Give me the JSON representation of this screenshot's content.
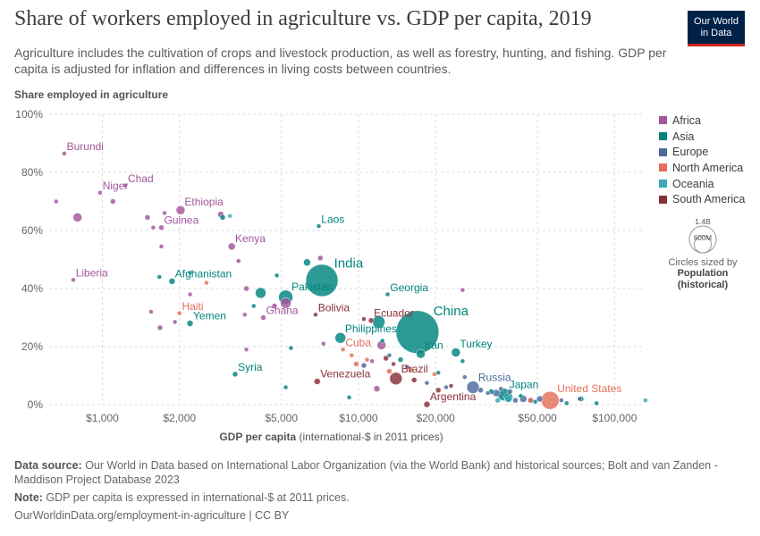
{
  "title": "Share of workers employed in agriculture vs. GDP per capita, 2019",
  "subtitle": "Agriculture includes the cultivation of crops and livestock production, as well as forestry, hunting, and fishing. GDP per capita is adjusted for inflation and differences in living costs between countries.",
  "logo": {
    "line1": "Our World",
    "line2": "in Data"
  },
  "size_legend": {
    "big": "1.4B",
    "small": "600M",
    "caption": "Circles sized by",
    "pop_line1": "Population",
    "pop_line2": "(historical)"
  },
  "footer": {
    "source_label": "Data source:",
    "source_text": " Our World in Data based on International Labor Organization (via the World Bank) and historical sources; Bolt and van Zanden - Maddison Project Database 2023",
    "note_label": "Note:",
    "note_text": " GDP per capita is expressed in international-$ at 2011 prices.",
    "url": "OurWorldinData.org/employment-in-agriculture | CC BY"
  },
  "colors": {
    "Africa": "#a2559c",
    "Asia": "#00847e",
    "Europe": "#4c6a9c",
    "North America": "#e56e5a",
    "Oceania": "#38aaba",
    "South America": "#883039"
  },
  "chart_data": {
    "type": "scatter",
    "title": "Share of workers employed in agriculture vs. GDP per capita, 2019",
    "ylabel": "Share employed in agriculture",
    "xlabel": "GDP per capita",
    "xlabel_suffix": " (international-$ in 2011 prices)",
    "x_scale": "log",
    "xlim": [
      620,
      130000
    ],
    "ylim": [
      0,
      100
    ],
    "x_ticks": [
      1000,
      2000,
      5000,
      10000,
      20000,
      50000,
      100000
    ],
    "x_tick_labels": [
      "$1,000",
      "$2,000",
      "$5,000",
      "$10,000",
      "$20,000",
      "$50,000",
      "$100,000"
    ],
    "y_ticks": [
      0,
      20,
      40,
      60,
      80,
      100
    ],
    "y_tick_labels": [
      "0%",
      "20%",
      "40%",
      "60%",
      "80%",
      "100%"
    ],
    "grid": true,
    "legend_position": "right",
    "series": [
      {
        "name": "Africa"
      },
      {
        "name": "Asia"
      },
      {
        "name": "Europe"
      },
      {
        "name": "North America"
      },
      {
        "name": "Oceania"
      },
      {
        "name": "South America"
      }
    ],
    "points": [
      {
        "x": 710,
        "y": 86.5,
        "r": 2.5,
        "continent": "Africa",
        "label": "Burundi"
      },
      {
        "x": 1230,
        "y": 75.5,
        "r": 2.5,
        "continent": "Africa",
        "label": "Chad"
      },
      {
        "x": 980,
        "y": 73,
        "r": 2.5,
        "continent": "Africa",
        "label": "Niger"
      },
      {
        "x": 2020,
        "y": 67,
        "r": 5,
        "continent": "Africa",
        "label": "Ethiopia"
      },
      {
        "x": 1700,
        "y": 61,
        "r": 3,
        "continent": "Africa",
        "label": "Guinea"
      },
      {
        "x": 3200,
        "y": 54.5,
        "r": 4,
        "continent": "Africa",
        "label": "Kenya"
      },
      {
        "x": 770,
        "y": 43,
        "r": 2.5,
        "continent": "Africa",
        "label": "Liberia"
      },
      {
        "x": 4250,
        "y": 30,
        "r": 3,
        "continent": "Africa",
        "label": "Ghana"
      },
      {
        "x": 1870,
        "y": 42.5,
        "r": 3.5,
        "continent": "Asia",
        "label": "Afghanistan"
      },
      {
        "x": 7000,
        "y": 61.5,
        "r": 2.5,
        "continent": "Asia",
        "label": "Laos"
      },
      {
        "x": 7200,
        "y": 42.8,
        "r": 18,
        "continent": "Asia",
        "label": "India"
      },
      {
        "x": 5200,
        "y": 37,
        "r": 8,
        "continent": "Asia",
        "label": "Pakistan"
      },
      {
        "x": 2200,
        "y": 28,
        "r": 3.5,
        "continent": "Asia",
        "label": "Yemen"
      },
      {
        "x": 3300,
        "y": 10.5,
        "r": 3,
        "continent": "Asia",
        "label": "Syria"
      },
      {
        "x": 13000,
        "y": 38,
        "r": 2.5,
        "continent": "Asia",
        "label": "Georgia"
      },
      {
        "x": 17000,
        "y": 25,
        "r": 24,
        "continent": "Asia",
        "label": "China"
      },
      {
        "x": 8500,
        "y": 23,
        "r": 6,
        "continent": "Asia",
        "label": "Philippines"
      },
      {
        "x": 17500,
        "y": 17.5,
        "r": 5,
        "continent": "Asia",
        "label": "Iran"
      },
      {
        "x": 24000,
        "y": 18,
        "r": 5,
        "continent": "Asia",
        "label": "Turkey"
      },
      {
        "x": 37000,
        "y": 3.5,
        "r": 7,
        "continent": "Asia",
        "label": "Japan"
      },
      {
        "x": 28000,
        "y": 6,
        "r": 7,
        "continent": "Europe",
        "label": "Russia"
      },
      {
        "x": 2000,
        "y": 31.5,
        "r": 2.5,
        "continent": "North America",
        "label": "Haiti"
      },
      {
        "x": 8700,
        "y": 19,
        "r": 2.5,
        "continent": "North America",
        "label": "Cuba"
      },
      {
        "x": 56000,
        "y": 1.5,
        "r": 10,
        "continent": "North America",
        "label": "United States"
      },
      {
        "x": 6800,
        "y": 31,
        "r": 2.5,
        "continent": "South America",
        "label": "Bolivia"
      },
      {
        "x": 11200,
        "y": 29,
        "r": 3,
        "continent": "South America",
        "label": "Ecuador"
      },
      {
        "x": 6900,
        "y": 8,
        "r": 3.5,
        "continent": "South America",
        "label": "Venezuela"
      },
      {
        "x": 14000,
        "y": 9,
        "r": 7,
        "continent": "South America",
        "label": "Brazil"
      },
      {
        "x": 18500,
        "y": 0.1,
        "r": 3.5,
        "continent": "South America",
        "label": "Argentina"
      },
      {
        "x": 800,
        "y": 64.5,
        "r": 5,
        "continent": "Africa"
      },
      {
        "x": 1100,
        "y": 70,
        "r": 3,
        "continent": "Africa"
      },
      {
        "x": 660,
        "y": 70,
        "r": 2.5,
        "continent": "Africa"
      },
      {
        "x": 1500,
        "y": 64.5,
        "r": 3,
        "continent": "Africa"
      },
      {
        "x": 1750,
        "y": 66,
        "r": 2.5,
        "continent": "Africa"
      },
      {
        "x": 2900,
        "y": 65.5,
        "r": 3.5,
        "continent": "Africa"
      },
      {
        "x": 1580,
        "y": 61,
        "r": 2.5,
        "continent": "Africa"
      },
      {
        "x": 1700,
        "y": 54.5,
        "r": 2.5,
        "continent": "Africa"
      },
      {
        "x": 3400,
        "y": 49.5,
        "r": 2.5,
        "continent": "Africa"
      },
      {
        "x": 2200,
        "y": 38,
        "r": 2.5,
        "continent": "Africa"
      },
      {
        "x": 3650,
        "y": 40,
        "r": 3,
        "continent": "Africa"
      },
      {
        "x": 1550,
        "y": 32,
        "r": 2.5,
        "continent": "Africa"
      },
      {
        "x": 1680,
        "y": 26.5,
        "r": 3,
        "continent": "Africa"
      },
      {
        "x": 1920,
        "y": 28.5,
        "r": 2.5,
        "continent": "Africa"
      },
      {
        "x": 3600,
        "y": 31,
        "r": 2.5,
        "continent": "Africa"
      },
      {
        "x": 3650,
        "y": 19,
        "r": 2.5,
        "continent": "Africa"
      },
      {
        "x": 5200,
        "y": 35,
        "r": 6,
        "continent": "Africa"
      },
      {
        "x": 4700,
        "y": 34,
        "r": 3,
        "continent": "Africa"
      },
      {
        "x": 7100,
        "y": 50.5,
        "r": 3,
        "continent": "Africa"
      },
      {
        "x": 7300,
        "y": 21,
        "r": 2.5,
        "continent": "Africa"
      },
      {
        "x": 12300,
        "y": 20.5,
        "r": 5,
        "continent": "Africa"
      },
      {
        "x": 11800,
        "y": 5.5,
        "r": 3.5,
        "continent": "Africa"
      },
      {
        "x": 11300,
        "y": 15,
        "r": 2.5,
        "continent": "Africa"
      },
      {
        "x": 25500,
        "y": 39.5,
        "r": 2.5,
        "continent": "Africa"
      },
      {
        "x": 2950,
        "y": 64.5,
        "r": 3,
        "continent": "Asia"
      },
      {
        "x": 1670,
        "y": 44,
        "r": 2.5,
        "continent": "Asia"
      },
      {
        "x": 4800,
        "y": 44.5,
        "r": 2.5,
        "continent": "Asia"
      },
      {
        "x": 6300,
        "y": 49,
        "r": 4,
        "continent": "Asia"
      },
      {
        "x": 4150,
        "y": 38.5,
        "r": 6,
        "continent": "Asia"
      },
      {
        "x": 3900,
        "y": 34,
        "r": 2.5,
        "continent": "Asia"
      },
      {
        "x": 5450,
        "y": 19.5,
        "r": 2.5,
        "continent": "Asia"
      },
      {
        "x": 5200,
        "y": 6,
        "r": 2.5,
        "continent": "Asia"
      },
      {
        "x": 9200,
        "y": 2.5,
        "r": 2.5,
        "continent": "Asia"
      },
      {
        "x": 12000,
        "y": 28.5,
        "r": 7,
        "continent": "Asia"
      },
      {
        "x": 12400,
        "y": 22,
        "r": 2.5,
        "continent": "Asia"
      },
      {
        "x": 14600,
        "y": 15.5,
        "r": 3,
        "continent": "Asia"
      },
      {
        "x": 20500,
        "y": 11,
        "r": 2.5,
        "continent": "Asia"
      },
      {
        "x": 25500,
        "y": 15,
        "r": 2.5,
        "continent": "Asia"
      },
      {
        "x": 33000,
        "y": 4.5,
        "r": 3,
        "continent": "Asia"
      },
      {
        "x": 38500,
        "y": 2.5,
        "r": 5,
        "continent": "Asia"
      },
      {
        "x": 43000,
        "y": 3,
        "r": 2.5,
        "continent": "Asia"
      },
      {
        "x": 49000,
        "y": 1,
        "r": 2.5,
        "continent": "Asia"
      },
      {
        "x": 65000,
        "y": 0.5,
        "r": 2.5,
        "continent": "Asia"
      },
      {
        "x": 74000,
        "y": 2,
        "r": 3,
        "continent": "Asia"
      },
      {
        "x": 85000,
        "y": 0.5,
        "r": 2.5,
        "continent": "Asia"
      },
      {
        "x": 10500,
        "y": 13.5,
        "r": 3,
        "continent": "Europe"
      },
      {
        "x": 13200,
        "y": 17,
        "r": 2.5,
        "continent": "Europe"
      },
      {
        "x": 15500,
        "y": 13,
        "r": 2.5,
        "continent": "Europe"
      },
      {
        "x": 18500,
        "y": 7.5,
        "r": 2.5,
        "continent": "Europe"
      },
      {
        "x": 22000,
        "y": 6,
        "r": 2.5,
        "continent": "Europe"
      },
      {
        "x": 26000,
        "y": 9.5,
        "r": 2.5,
        "continent": "Europe"
      },
      {
        "x": 30000,
        "y": 5,
        "r": 3,
        "continent": "Europe"
      },
      {
        "x": 32000,
        "y": 4,
        "r": 2.5,
        "continent": "Europe"
      },
      {
        "x": 34500,
        "y": 4,
        "r": 4,
        "continent": "Europe"
      },
      {
        "x": 36000,
        "y": 5.5,
        "r": 2.5,
        "continent": "Europe"
      },
      {
        "x": 39000,
        "y": 4.5,
        "r": 3,
        "continent": "Europe"
      },
      {
        "x": 41000,
        "y": 1.5,
        "r": 3,
        "continent": "Europe"
      },
      {
        "x": 44000,
        "y": 2,
        "r": 4,
        "continent": "Europe"
      },
      {
        "x": 47000,
        "y": 1.5,
        "r": 3.5,
        "continent": "Europe"
      },
      {
        "x": 51000,
        "y": 2,
        "r": 3.5,
        "continent": "Europe"
      },
      {
        "x": 62000,
        "y": 1.5,
        "r": 2.5,
        "continent": "Europe"
      },
      {
        "x": 73000,
        "y": 2,
        "r": 2.5,
        "continent": "Europe"
      },
      {
        "x": 2550,
        "y": 42,
        "r": 2.5,
        "continent": "North America"
      },
      {
        "x": 9400,
        "y": 17,
        "r": 2.5,
        "continent": "North America"
      },
      {
        "x": 10800,
        "y": 15.5,
        "r": 2.5,
        "continent": "North America"
      },
      {
        "x": 13200,
        "y": 11.5,
        "r": 3,
        "continent": "North America"
      },
      {
        "x": 16000,
        "y": 12,
        "r": 3,
        "continent": "North America"
      },
      {
        "x": 19800,
        "y": 10.5,
        "r": 2.5,
        "continent": "North America"
      },
      {
        "x": 9800,
        "y": 14,
        "r": 3,
        "continent": "North America"
      },
      {
        "x": 47000,
        "y": 1.5,
        "r": 3,
        "continent": "North America"
      },
      {
        "x": 3150,
        "y": 65,
        "r": 2.5,
        "continent": "Oceania"
      },
      {
        "x": 38500,
        "y": 2,
        "r": 4,
        "continent": "Oceania"
      },
      {
        "x": 35000,
        "y": 1.5,
        "r": 3,
        "continent": "Oceania"
      },
      {
        "x": 2200,
        "y": 45.5,
        "r": 2.5,
        "continent": "Oceania"
      },
      {
        "x": 132000,
        "y": 1.5,
        "r": 2.5,
        "continent": "Oceania"
      },
      {
        "x": 10500,
        "y": 29.5,
        "r": 2.5,
        "continent": "South America"
      },
      {
        "x": 12800,
        "y": 16,
        "r": 3,
        "continent": "South America"
      },
      {
        "x": 13700,
        "y": 14,
        "r": 2.5,
        "continent": "South America"
      },
      {
        "x": 16500,
        "y": 8.5,
        "r": 3,
        "continent": "South America"
      },
      {
        "x": 20500,
        "y": 5,
        "r": 3,
        "continent": "South America"
      },
      {
        "x": 23000,
        "y": 6.5,
        "r": 2.5,
        "continent": "South America"
      }
    ]
  }
}
